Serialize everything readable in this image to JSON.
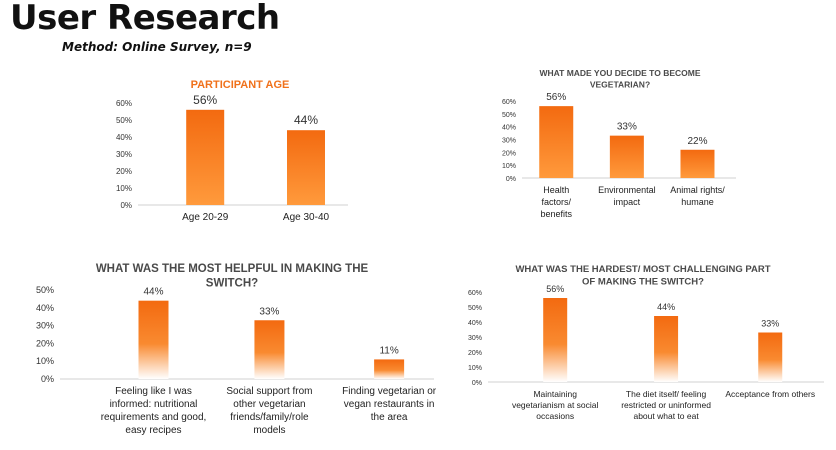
{
  "header": {
    "title": "User Research",
    "subtitle": "Method: Online Survey, n=9"
  },
  "colors": {
    "bar_top": "#f36a10",
    "bar_fade": "#ffffff",
    "title_text": "#f0711b",
    "charcoal_title": "#4a4a4a",
    "axis_text": "#333333"
  },
  "chart_data": [
    {
      "type": "bar",
      "title": "PARTICIPANT AGE",
      "categories": [
        "Age 20-29",
        "Age 30-40"
      ],
      "values": [
        56,
        44
      ],
      "value_labels": [
        "56%",
        "44%"
      ],
      "ylim": [
        0,
        60
      ],
      "yticks": [
        "0%",
        "10%",
        "20%",
        "30%",
        "40%",
        "50%",
        "60%"
      ],
      "xlabel": "",
      "ylabel": ""
    },
    {
      "type": "bar",
      "title": "WHAT MADE YOU DECIDE TO BECOME VEGETARIAN?",
      "categories": [
        "Health factors/ benefits",
        "Environmental impact",
        "Animal rights/ humane"
      ],
      "values": [
        56,
        33,
        22
      ],
      "value_labels": [
        "56%",
        "33%",
        "22%"
      ],
      "ylim": [
        0,
        60
      ],
      "yticks": [
        "0%",
        "10%",
        "20%",
        "30%",
        "40%",
        "50%",
        "60%"
      ],
      "xlabel": "",
      "ylabel": ""
    },
    {
      "type": "bar",
      "title": "WHAT WAS THE MOST HELPFUL IN MAKING THE SWITCH?",
      "categories": [
        "Feeling like I was informed: nutritional requirements and good, easy recipes",
        "Social support from other vegetarian friends/family/role models",
        "Finding vegetarian or vegan restaurants in the area"
      ],
      "values": [
        44,
        33,
        11
      ],
      "value_labels": [
        "44%",
        "33%",
        "11%"
      ],
      "ylim": [
        0,
        50
      ],
      "yticks": [
        "0%",
        "10%",
        "20%",
        "30%",
        "40%",
        "50%"
      ],
      "xlabel": "",
      "ylabel": ""
    },
    {
      "type": "bar",
      "title": "WHAT WAS THE HARDEST/ MOST CHALLENGING PART OF MAKING THE SWITCH?",
      "categories": [
        "Maintaining vegetarianism at social occasions",
        "The diet itself/ feeling restricted or uninformed about what to eat",
        "Acceptance from others"
      ],
      "values": [
        56,
        44,
        33
      ],
      "value_labels": [
        "56%",
        "44%",
        "33%"
      ],
      "ylim": [
        0,
        60
      ],
      "yticks": [
        "0%",
        "10%",
        "20%",
        "30%",
        "40%",
        "50%",
        "60%"
      ],
      "xlabel": "",
      "ylabel": ""
    }
  ]
}
